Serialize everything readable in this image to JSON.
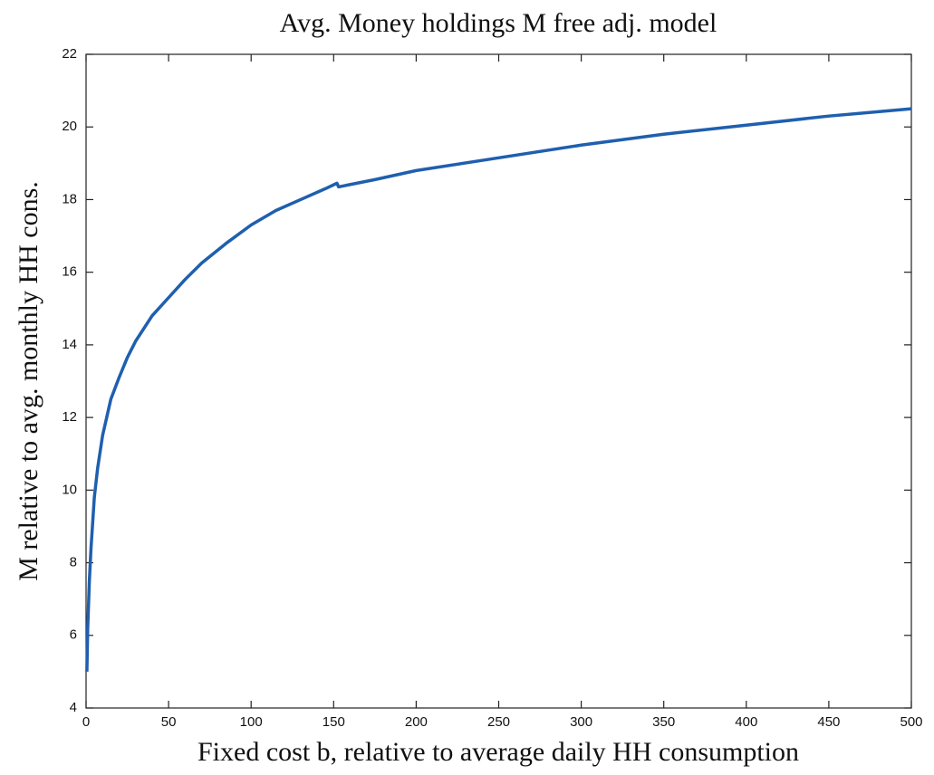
{
  "chart_data": {
    "type": "line",
    "title": "Avg. Money holdings M free adj. model",
    "x_label": "Fixed cost b, relative to average daily HH consumption",
    "y_label": "M relative to avg. monthly HH cons.",
    "x": [
      0.5,
      1,
      2,
      3,
      5,
      7,
      10,
      15,
      20,
      25,
      30,
      40,
      50,
      60,
      70,
      85,
      100,
      115,
      130,
      145,
      152,
      153,
      175,
      200,
      250,
      300,
      350,
      400,
      450,
      500
    ],
    "series": [
      {
        "name": "M",
        "color": "#1f5fae",
        "values": [
          5.0,
          6.2,
          7.5,
          8.4,
          9.8,
          10.6,
          11.5,
          12.5,
          13.1,
          13.65,
          14.1,
          14.8,
          15.3,
          15.8,
          16.25,
          16.8,
          17.3,
          17.7,
          18.0,
          18.3,
          18.45,
          18.35,
          18.55,
          18.8,
          19.15,
          19.5,
          19.8,
          20.05,
          20.3,
          20.5
        ]
      }
    ],
    "xlim": [
      0,
      500
    ],
    "xticks": [
      0,
      50,
      100,
      150,
      200,
      250,
      300,
      350,
      400,
      450,
      500
    ],
    "ylim": [
      4,
      22
    ],
    "yticks": [
      4,
      6,
      8,
      10,
      12,
      14,
      16,
      18,
      20,
      22
    ]
  }
}
